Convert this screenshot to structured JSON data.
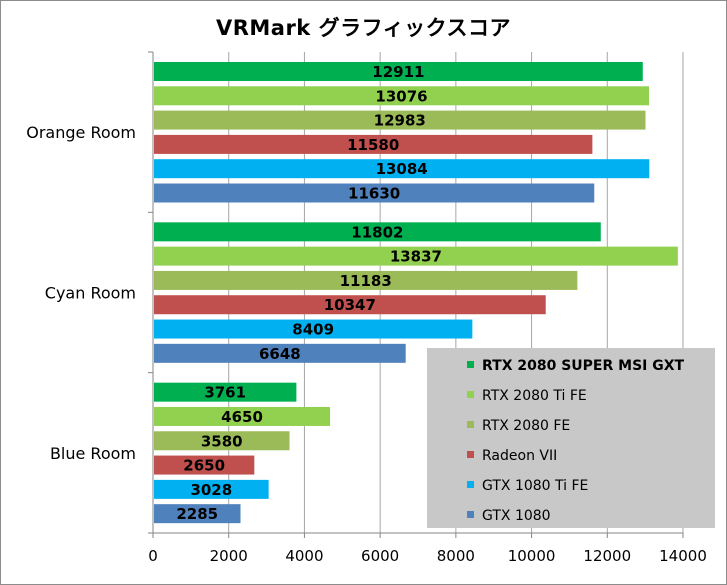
{
  "chart_data": {
    "type": "bar",
    "orientation": "horizontal",
    "title": "VRMark グラフィックスコア",
    "categories": [
      "Orange Room",
      "Cyan Room",
      "Blue Room"
    ],
    "series": [
      {
        "name": "RTX 2080 SUPER MSI GXT",
        "color": "#00b050",
        "values": [
          12911,
          11802,
          3761
        ],
        "legend_bold": true
      },
      {
        "name": "RTX 2080 Ti FE",
        "color": "#92d050",
        "values": [
          13076,
          13837,
          4650
        ],
        "legend_bold": false
      },
      {
        "name": "RTX 2080 FE",
        "color": "#9bbb59",
        "values": [
          12983,
          11183,
          3580
        ],
        "legend_bold": false
      },
      {
        "name": "Radeon VII",
        "color": "#c0504d",
        "values": [
          11580,
          10347,
          2650
        ],
        "legend_bold": false
      },
      {
        "name": "GTX 1080 Ti FE",
        "color": "#00b0f0",
        "values": [
          13084,
          8409,
          3028
        ],
        "legend_bold": false
      },
      {
        "name": "GTX 1080",
        "color": "#4f81bd",
        "values": [
          11630,
          6648,
          2285
        ],
        "legend_bold": false
      }
    ],
    "x_ticks": [
      0,
      2000,
      4000,
      6000,
      8000,
      10000,
      12000,
      14000
    ],
    "xlim": [
      0,
      14000
    ],
    "grid": true,
    "legend_position": "bottom-right",
    "legend_background": "#c8c8c8",
    "gridline_color": "#a6a6a6"
  }
}
